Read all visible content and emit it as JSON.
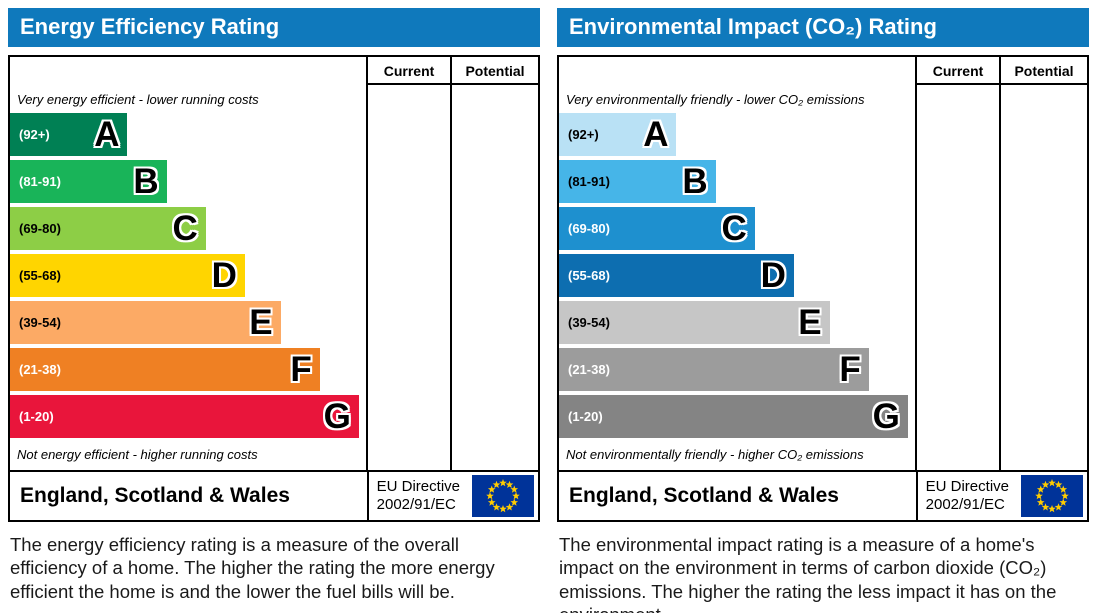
{
  "charts": [
    {
      "title": "Energy Efficiency Rating",
      "columns": [
        "Current",
        "Potential"
      ],
      "top_note": "Very energy efficient - lower running costs",
      "bottom_note": "Not energy efficient - higher running costs",
      "footer": {
        "region": "England, Scotland & Wales",
        "directive_line1": "EU Directive",
        "directive_line2": "2002/91/EC"
      },
      "caption": "The energy efficiency rating is a measure of the overall efficiency of a home. The higher the rating the more energy efficient the home is and the lower the fuel bills will be.",
      "bands": [
        {
          "range": "(92+)",
          "letter": "A",
          "color": "#008054",
          "label_color": "#ffffff",
          "width_pct": 33
        },
        {
          "range": "(81-91)",
          "letter": "B",
          "color": "#19b459",
          "label_color": "#ffffff",
          "width_pct": 44
        },
        {
          "range": "(69-80)",
          "letter": "C",
          "color": "#8dce46",
          "label_color": "#000000",
          "width_pct": 55
        },
        {
          "range": "(55-68)",
          "letter": "D",
          "color": "#ffd500",
          "label_color": "#000000",
          "width_pct": 66
        },
        {
          "range": "(39-54)",
          "letter": "E",
          "color": "#fcaa65",
          "label_color": "#000000",
          "width_pct": 76
        },
        {
          "range": "(21-38)",
          "letter": "F",
          "color": "#ef8023",
          "label_color": "#ffffff",
          "width_pct": 87
        },
        {
          "range": "(1-20)",
          "letter": "G",
          "color": "#e9153b",
          "label_color": "#ffffff",
          "width_pct": 98
        }
      ]
    },
    {
      "title": "Environmental Impact (CO₂) Rating",
      "columns": [
        "Current",
        "Potential"
      ],
      "top_note": "Very environmentally friendly - lower CO₂ emissions",
      "bottom_note": "Not environmentally friendly - higher CO₂ emissions",
      "footer": {
        "region": "England, Scotland & Wales",
        "directive_line1": "EU Directive",
        "directive_line2": "2002/91/EC"
      },
      "caption": "The environmental impact rating is a measure of a home's impact on the environment in terms of carbon dioxide (CO₂) emissions. The higher the rating the less impact it has on the environment.",
      "bands": [
        {
          "range": "(92+)",
          "letter": "A",
          "color": "#b9e1f5",
          "label_color": "#000000",
          "width_pct": 33
        },
        {
          "range": "(81-91)",
          "letter": "B",
          "color": "#46b5e8",
          "label_color": "#000000",
          "width_pct": 44
        },
        {
          "range": "(69-80)",
          "letter": "C",
          "color": "#1e90cf",
          "label_color": "#ffffff",
          "width_pct": 55
        },
        {
          "range": "(55-68)",
          "letter": "D",
          "color": "#0d6eb0",
          "label_color": "#ffffff",
          "width_pct": 66
        },
        {
          "range": "(39-54)",
          "letter": "E",
          "color": "#c6c6c6",
          "label_color": "#000000",
          "width_pct": 76
        },
        {
          "range": "(21-38)",
          "letter": "F",
          "color": "#9c9c9c",
          "label_color": "#ffffff",
          "width_pct": 87
        },
        {
          "range": "(1-20)",
          "letter": "G",
          "color": "#848484",
          "label_color": "#ffffff",
          "width_pct": 98
        }
      ]
    }
  ],
  "chart_data": [
    {
      "type": "bar",
      "orientation": "horizontal",
      "title": "Energy Efficiency Rating",
      "categories": [
        "A",
        "B",
        "C",
        "D",
        "E",
        "F",
        "G"
      ],
      "band_score_ranges": [
        "92+",
        "81-91",
        "69-80",
        "55-68",
        "39-54",
        "21-38",
        "1-20"
      ],
      "values": [
        33,
        44,
        55,
        66,
        76,
        87,
        98
      ],
      "values_note": "relative bar length as % of band column width",
      "colors": [
        "#008054",
        "#19b459",
        "#8dce46",
        "#ffd500",
        "#fcaa65",
        "#ef8023",
        "#e9153b"
      ],
      "value_columns": [
        "Current",
        "Potential"
      ],
      "value_columns_empty": true,
      "annotations": [
        "Very energy efficient - lower running costs",
        "Not energy efficient - higher running costs",
        "England, Scotland & Wales",
        "EU Directive 2002/91/EC"
      ],
      "legend_position": "none"
    },
    {
      "type": "bar",
      "orientation": "horizontal",
      "title": "Environmental Impact (CO₂) Rating",
      "categories": [
        "A",
        "B",
        "C",
        "D",
        "E",
        "F",
        "G"
      ],
      "band_score_ranges": [
        "92+",
        "81-91",
        "69-80",
        "55-68",
        "39-54",
        "21-38",
        "1-20"
      ],
      "values": [
        33,
        44,
        55,
        66,
        76,
        87,
        98
      ],
      "values_note": "relative bar length as % of band column width",
      "colors": [
        "#b9e1f5",
        "#46b5e8",
        "#1e90cf",
        "#0d6eb0",
        "#c6c6c6",
        "#9c9c9c",
        "#848484"
      ],
      "value_columns": [
        "Current",
        "Potential"
      ],
      "value_columns_empty": true,
      "annotations": [
        "Very environmentally friendly - lower CO₂ emissions",
        "Not environmentally friendly - higher CO₂ emissions",
        "England, Scotland & Wales",
        "EU Directive 2002/91/EC"
      ],
      "legend_position": "none"
    }
  ]
}
